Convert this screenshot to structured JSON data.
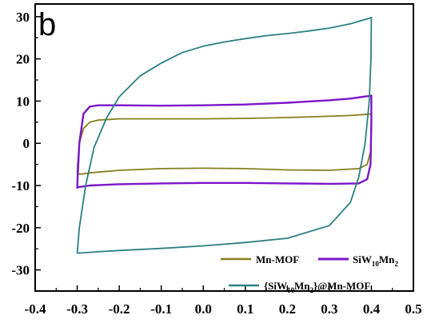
{
  "chart_data": {
    "type": "line",
    "panel_label": "b",
    "title": "",
    "xlabel": "",
    "ylabel": "",
    "xlim": [
      -0.4,
      0.5
    ],
    "ylim": [
      -35,
      33
    ],
    "xticks": [
      -0.4,
      -0.3,
      -0.2,
      -0.1,
      0.0,
      0.1,
      0.2,
      0.3,
      0.4,
      0.5
    ],
    "xtick_labels": [
      "-0.4",
      "-0.3",
      "-0.2",
      "-0.1",
      "0.0",
      "0.1",
      "0.2",
      "0.3",
      "0.4",
      "0.5"
    ],
    "yticks": [
      -30,
      -20,
      -10,
      0,
      10,
      20,
      30
    ],
    "ytick_labels": [
      "-30",
      "-20",
      "-10",
      "0",
      "10",
      "20",
      "30"
    ],
    "grid": false,
    "legend_position": "bottom-right",
    "series": [
      {
        "name": "Mn-MOF",
        "name_parts": [
          {
            "t": "Mn-MOF",
            "sub": false
          }
        ],
        "color": "#857f1d",
        "x": [
          -0.3,
          -0.299,
          -0.295,
          -0.285,
          -0.27,
          -0.25,
          -0.2,
          -0.1,
          0.0,
          0.1,
          0.2,
          0.3,
          0.35,
          0.38,
          0.395,
          0.4,
          0.4,
          0.398,
          0.39,
          0.37,
          0.3,
          0.2,
          0.1,
          0.0,
          -0.1,
          -0.2,
          -0.27,
          -0.29,
          -0.298,
          -0.3
        ],
        "y": [
          -7.0,
          -5.0,
          0.0,
          3.5,
          5.0,
          5.5,
          5.8,
          5.8,
          5.8,
          5.9,
          6.1,
          6.4,
          6.6,
          6.8,
          6.9,
          7.0,
          3.0,
          -2.0,
          -5.0,
          -6.0,
          -6.4,
          -6.3,
          -6.0,
          -5.9,
          -6.0,
          -6.4,
          -7.0,
          -7.3,
          -7.2,
          -7.0
        ]
      },
      {
        "name": "SiW10Mn2",
        "name_parts": [
          {
            "t": "SiW",
            "sub": false
          },
          {
            "t": "10",
            "sub": true
          },
          {
            "t": "Mn",
            "sub": false
          },
          {
            "t": "2",
            "sub": true
          }
        ],
        "color": "#7b16c9",
        "x": [
          -0.3,
          -0.299,
          -0.295,
          -0.285,
          -0.27,
          -0.25,
          -0.2,
          -0.1,
          0.0,
          0.1,
          0.2,
          0.3,
          0.35,
          0.38,
          0.395,
          0.4,
          0.4,
          0.398,
          0.39,
          0.37,
          0.3,
          0.2,
          0.1,
          0.0,
          -0.1,
          -0.2,
          -0.27,
          -0.29,
          -0.298,
          -0.3
        ],
        "y": [
          -10.5,
          -8.0,
          0.0,
          7.0,
          8.7,
          9.0,
          9.0,
          8.9,
          9.0,
          9.2,
          9.6,
          10.2,
          10.6,
          11.0,
          11.2,
          11.3,
          5.0,
          -5.0,
          -8.5,
          -9.5,
          -9.6,
          -9.5,
          -9.4,
          -9.4,
          -9.5,
          -9.7,
          -10.0,
          -10.3,
          -10.4,
          -10.5
        ]
      },
      {
        "name": "{SiW10Mn2}@Mn-MOF",
        "name_parts": [
          {
            "t": "{SiW",
            "sub": false
          },
          {
            "t": "10",
            "sub": true
          },
          {
            "t": "Mn",
            "sub": false
          },
          {
            "t": "2",
            "sub": true
          },
          {
            "t": "}@Mn-MOF",
            "sub": false
          }
        ],
        "color": "#2b8080",
        "x": [
          -0.3,
          -0.295,
          -0.28,
          -0.26,
          -0.23,
          -0.2,
          -0.15,
          -0.1,
          -0.05,
          0.0,
          0.05,
          0.1,
          0.15,
          0.2,
          0.25,
          0.3,
          0.35,
          0.38,
          0.395,
          0.4,
          0.399,
          0.395,
          0.385,
          0.37,
          0.35,
          0.3,
          0.2,
          0.1,
          0.0,
          -0.1,
          -0.2,
          -0.25,
          -0.28,
          -0.295,
          -0.3
        ],
        "y": [
          -26.0,
          -20.0,
          -10.0,
          -1.0,
          6.0,
          11.0,
          16.0,
          19.0,
          21.5,
          23.0,
          24.0,
          24.8,
          25.5,
          26.0,
          26.6,
          27.3,
          28.3,
          29.2,
          29.6,
          29.8,
          20.0,
          10.0,
          0.0,
          -8.0,
          -14.0,
          -19.5,
          -22.5,
          -23.5,
          -24.3,
          -24.9,
          -25.4,
          -25.7,
          -25.9,
          -26.0,
          -26.0
        ]
      }
    ]
  }
}
